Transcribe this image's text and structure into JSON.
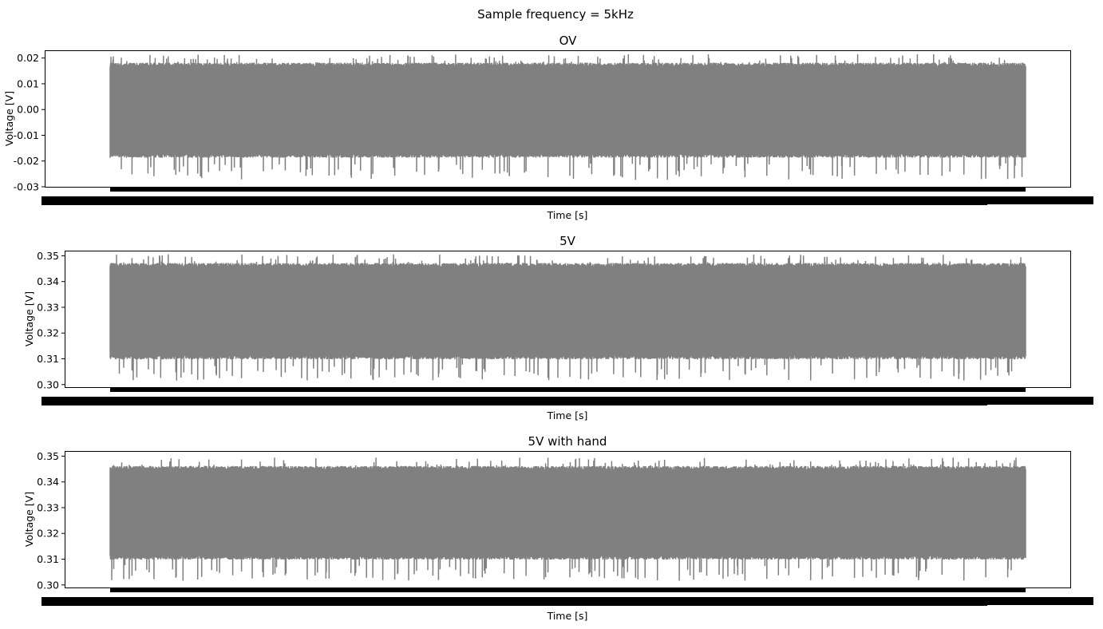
{
  "figure": {
    "suptitle": "Sample frequency = 5kHz"
  },
  "chart_data": [
    {
      "type": "line",
      "title": "OV",
      "xlabel": "Time [s]",
      "ylabel": "Voltage [V]",
      "ylim": [
        -0.03,
        0.023
      ],
      "yticks": [
        "0.02",
        "0.01",
        "0.00",
        "-0.01",
        "-0.02",
        "-0.03"
      ],
      "ytick_values": [
        0.02,
        0.01,
        0.0,
        -0.01,
        -0.02,
        -0.03
      ],
      "xtick_labels": "overlapping, illegible",
      "grid": false,
      "series": [
        {
          "color": "#808080",
          "band_upper": 0.0175,
          "band_lower": -0.018,
          "peak_max": 0.0215,
          "peak_min": -0.0275,
          "mean": 0.0
        }
      ]
    },
    {
      "type": "line",
      "title": "5V",
      "xlabel": "Time [s]",
      "ylabel": "Voltage [V]",
      "ylim": [
        0.299,
        0.352
      ],
      "yticks": [
        "0.35",
        "0.34",
        "0.33",
        "0.32",
        "0.31",
        "0.30"
      ],
      "ytick_values": [
        0.35,
        0.34,
        0.33,
        0.32,
        0.31,
        0.3
      ],
      "xtick_labels": "overlapping, illegible",
      "grid": false,
      "series": [
        {
          "color": "#808080",
          "band_upper": 0.3465,
          "band_lower": 0.3105,
          "peak_max": 0.3505,
          "peak_min": 0.3015,
          "mean": 0.3285
        }
      ]
    },
    {
      "type": "line",
      "title": "5V with hand",
      "xlabel": "Time [s]",
      "ylabel": "Voltage [V]",
      "ylim": [
        0.299,
        0.352
      ],
      "yticks": [
        "0.35",
        "0.34",
        "0.33",
        "0.32",
        "0.31",
        "0.30"
      ],
      "ytick_values": [
        0.35,
        0.34,
        0.33,
        0.32,
        0.31,
        0.3
      ],
      "xtick_labels": "overlapping, illegible",
      "grid": false,
      "series": [
        {
          "color": "#808080",
          "band_upper": 0.3455,
          "band_lower": 0.3105,
          "peak_max": 0.3495,
          "peak_min": 0.3015,
          "mean": 0.328
        }
      ]
    }
  ]
}
